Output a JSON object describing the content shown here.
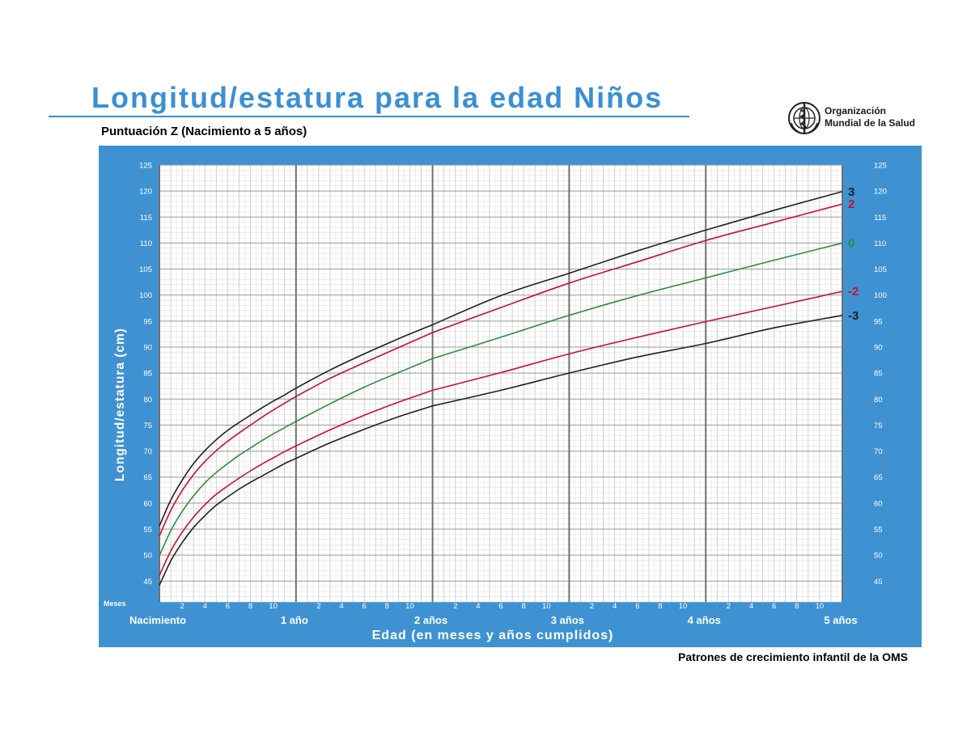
{
  "header": {
    "title": "Longitud/estatura para la edad Niños",
    "subtitle": "Puntuación Z (Nacimiento a 5 años)"
  },
  "logo": {
    "icon": "who-emblem-icon",
    "line1": "Organización",
    "line2": "Mundial de la Salud"
  },
  "footer": {
    "text": "Patrones de crecimiento infantil de la OMS"
  },
  "colors": {
    "panel": "#3f92d2",
    "title": "#3a8fd4",
    "sd3": "#231f20",
    "sd2": "#c8102e",
    "median": "#2e8b3e"
  },
  "chart_data": {
    "type": "line",
    "ylabel": "Longitud/estatura (cm)",
    "xlabel": "Edad (en meses y años cumplidos)",
    "months_label": "Meses",
    "xlim": [
      0,
      60
    ],
    "ylim": [
      41,
      125
    ],
    "y_ticks": [
      45,
      50,
      55,
      60,
      65,
      70,
      75,
      80,
      85,
      90,
      95,
      100,
      105,
      110,
      115,
      120,
      125
    ],
    "month_tick_labels": [
      "2",
      "4",
      "6",
      "8",
      "10"
    ],
    "year_labels": [
      {
        "month": 0,
        "label": "Nacimiento"
      },
      {
        "month": 12,
        "label": "1 año"
      },
      {
        "month": 24,
        "label": "2 años"
      },
      {
        "month": 36,
        "label": "3 años"
      },
      {
        "month": 48,
        "label": "4 años"
      },
      {
        "month": 60,
        "label": "5 años"
      }
    ],
    "x": [
      0,
      1,
      2,
      3,
      4,
      5,
      6,
      7,
      8,
      9,
      10,
      11,
      12,
      15,
      18,
      21,
      24,
      30,
      36,
      42,
      48,
      54,
      60
    ],
    "series": [
      {
        "name": "3",
        "color_key": "sd3",
        "break_at_24": true,
        "values": [
          55.6,
          60.6,
          64.4,
          67.6,
          70.1,
          72.2,
          74.0,
          75.5,
          76.9,
          78.3,
          79.6,
          80.8,
          82.1,
          85.6,
          88.7,
          91.6,
          94.3,
          99.9,
          104.2,
          108.5,
          112.5,
          116.3,
          119.9
        ]
      },
      {
        "name": "2",
        "color_key": "sd2",
        "break_at_24": true,
        "values": [
          53.7,
          58.6,
          62.4,
          65.5,
          68.0,
          70.1,
          71.9,
          73.5,
          75.0,
          76.5,
          77.9,
          79.2,
          80.5,
          84.0,
          87.0,
          89.9,
          92.8,
          97.6,
          102.3,
          106.4,
          110.5,
          114.0,
          117.5
        ]
      },
      {
        "name": "0",
        "color_key": "median",
        "break_at_24": true,
        "values": [
          49.9,
          54.7,
          58.4,
          61.4,
          63.9,
          65.9,
          67.6,
          69.2,
          70.6,
          72.0,
          73.3,
          74.5,
          75.7,
          79.1,
          82.3,
          85.1,
          87.8,
          91.9,
          96.1,
          99.9,
          103.3,
          106.7,
          110.0
        ]
      },
      {
        "name": "-2",
        "color_key": "sd2",
        "break_at_24": true,
        "values": [
          46.1,
          50.8,
          54.4,
          57.3,
          59.7,
          61.7,
          63.3,
          64.8,
          66.2,
          67.5,
          68.7,
          69.9,
          71.0,
          74.1,
          76.9,
          79.4,
          81.7,
          85.1,
          88.7,
          91.9,
          94.9,
          97.8,
          100.7
        ]
      },
      {
        "name": "-3",
        "color_key": "sd3",
        "break_at_24": true,
        "values": [
          44.2,
          48.9,
          52.4,
          55.3,
          57.6,
          59.6,
          61.2,
          62.7,
          64.0,
          65.2,
          66.4,
          67.6,
          68.6,
          71.6,
          74.2,
          76.6,
          78.7,
          81.7,
          85.0,
          88.1,
          90.7,
          93.7,
          96.1
        ]
      }
    ]
  }
}
